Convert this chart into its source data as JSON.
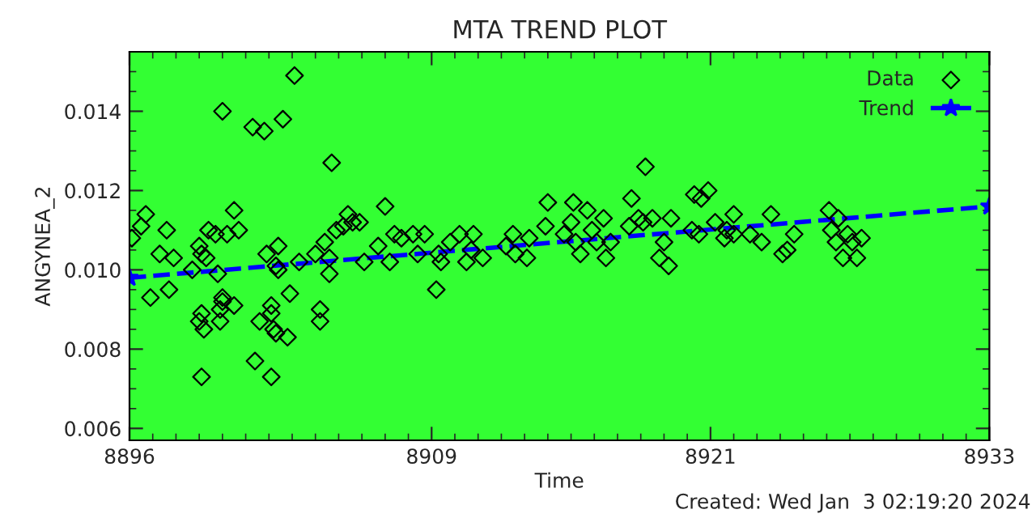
{
  "chart_data": {
    "type": "scatter",
    "title": "MTA TREND PLOT",
    "xlabel": "Time",
    "ylabel": "ANGYNEA_2",
    "annotations": [
      "Created: Wed Jan  3 02:19:20 2024"
    ],
    "xlim": [
      8896,
      8933
    ],
    "xticks": [
      8896,
      8909,
      8921,
      8933
    ],
    "ylim": [
      0.0057,
      0.0155
    ],
    "yticks": [
      {
        "value": 0.006,
        "label": "0.006"
      },
      {
        "value": 0.008,
        "label": "0.008"
      },
      {
        "value": 0.01,
        "label": "0.010"
      },
      {
        "value": 0.012,
        "label": "0.012"
      },
      {
        "value": 0.014,
        "label": "0.014"
      }
    ],
    "grid": false,
    "legend": "top right",
    "series": [
      {
        "name": "Data",
        "color": "#000000",
        "marker": "diamond",
        "x": [
          8896.7,
          8896.5,
          8896.1,
          8897.3,
          8897.9,
          8896.9,
          8897.7,
          8897.6,
          8898.7,
          8899.0,
          8899.1,
          8899.3,
          8899.8,
          8899.1,
          8899.0,
          8899.2,
          8899.1,
          8900.0,
          8900.0,
          8899.9,
          8899.9,
          8900.5,
          8900.5,
          8899.4,
          8899.7,
          8900.2,
          8900.7,
          8900.0,
          8901.3,
          8901.8,
          8902.6,
          8903.1,
          8901.9,
          8902.4,
          8902.3,
          8902.4,
          8902.1,
          8902.1,
          8901.6,
          8902.2,
          8902.3,
          8902.8,
          8902.9,
          8901.4,
          8902.1,
          8903.3,
          8904.0,
          8904.4,
          8904.6,
          8904.6,
          8904.2,
          8904.2,
          8904.7,
          8905.4,
          8904.9,
          8905.2,
          8905.6,
          8905.9,
          8906.1,
          8906.7,
          8907.0,
          8907.2,
          8907.4,
          8907.7,
          8908.2,
          8908.7,
          8908.4,
          8909.2,
          8909.4,
          8909.3,
          8909.8,
          8910.2,
          8910.5,
          8910.8,
          8911.2,
          8910.7,
          8912.5,
          8912.2,
          8912.6,
          8913.1,
          8913.2,
          8913.9,
          8914.0,
          8914.7,
          8915.0,
          8915.1,
          8915.7,
          8915.4,
          8915.2,
          8915.9,
          8916.4,
          8916.1,
          8916.5,
          8916.7,
          8917.5,
          8917.6,
          8918.2,
          8917.9,
          8918.1,
          8918.5,
          8919.0,
          8918.8,
          8919.2,
          8919.3,
          8920.3,
          8920.9,
          8920.6,
          8920.2,
          8920.5,
          8921.2,
          8922.0,
          8921.7,
          8921.6,
          8922.0,
          8922.7,
          8923.2,
          8923.6,
          8924.6,
          8924.1,
          8924.3,
          8926.1,
          8926.5,
          8926.2,
          8926.4,
          8926.9,
          8927.1,
          8927.5,
          8926.7,
          8927.3
        ],
        "values": [
          0.0114,
          0.0111,
          0.0108,
          0.0104,
          0.0103,
          0.0093,
          0.0095,
          0.011,
          0.01,
          0.0106,
          0.0104,
          0.0103,
          0.0099,
          0.0089,
          0.0087,
          0.0085,
          0.0073,
          0.0093,
          0.0092,
          0.009,
          0.0087,
          0.0091,
          0.0115,
          0.011,
          0.0109,
          0.0109,
          0.011,
          0.014,
          0.0136,
          0.0135,
          0.0138,
          0.0149,
          0.0104,
          0.0106,
          0.0101,
          0.01,
          0.0091,
          0.0089,
          0.0087,
          0.0085,
          0.0084,
          0.0083,
          0.0094,
          0.0077,
          0.0073,
          0.0102,
          0.0104,
          0.0107,
          0.0103,
          0.0099,
          0.009,
          0.0087,
          0.0127,
          0.0114,
          0.011,
          0.0111,
          0.0112,
          0.0112,
          0.0102,
          0.0106,
          0.0116,
          0.0102,
          0.0109,
          0.0108,
          0.0109,
          0.0109,
          0.0104,
          0.0095,
          0.0102,
          0.0104,
          0.0107,
          0.0109,
          0.0102,
          0.0109,
          0.0103,
          0.0105,
          0.0109,
          0.0106,
          0.0104,
          0.0103,
          0.0108,
          0.0111,
          0.0117,
          0.0109,
          0.0112,
          0.0117,
          0.0115,
          0.0104,
          0.0107,
          0.011,
          0.0113,
          0.0107,
          0.0103,
          0.0107,
          0.0111,
          0.0118,
          0.0126,
          0.0113,
          0.0112,
          0.0113,
          0.0107,
          0.0103,
          0.0101,
          0.0113,
          0.0119,
          0.012,
          0.0118,
          0.011,
          0.0109,
          0.0112,
          0.0114,
          0.011,
          0.0108,
          0.0109,
          0.0109,
          0.0107,
          0.0114,
          0.0109,
          0.0104,
          0.0105,
          0.0115,
          0.0113,
          0.011,
          0.0107,
          0.0109,
          0.0107,
          0.0108,
          0.0103,
          0.0103
        ]
      },
      {
        "name": "Trend",
        "type": "line",
        "color": "#0000ff",
        "line_style": "dashed",
        "marker": "star",
        "x": [
          8896,
          8933
        ],
        "values": [
          0.0098,
          0.0116
        ]
      }
    ]
  }
}
